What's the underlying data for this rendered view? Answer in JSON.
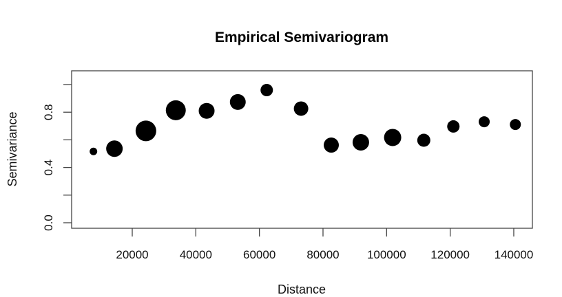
{
  "chart_data": {
    "type": "scatter",
    "title": "Empirical Semivariogram",
    "xlabel": "Distance",
    "ylabel": "Semivariance",
    "xlim": [
      4000,
      146000
    ],
    "ylim": [
      -0.02,
      1.04
    ],
    "x_ticks": [
      20000,
      40000,
      60000,
      80000,
      100000,
      120000,
      140000
    ],
    "x_tick_labels": [
      "20000",
      "40000",
      "60000",
      "80000",
      "100000",
      "120000",
      "140000"
    ],
    "y_ticks": [
      0.0,
      0.2,
      0.4,
      0.6,
      0.8,
      1.0
    ],
    "y_tick_labels": [
      "0.0",
      "",
      "0.4",
      "",
      "0.8",
      ""
    ],
    "grid": false,
    "legend": null,
    "marker": "filled circle, size proportional to number of pairs",
    "point_color": "#000000",
    "points": [
      {
        "x": 7800,
        "y": 0.516,
        "size": 5.5
      },
      {
        "x": 14400,
        "y": 0.536,
        "size": 12
      },
      {
        "x": 24300,
        "y": 0.665,
        "size": 15
      },
      {
        "x": 33700,
        "y": 0.814,
        "size": 14.5
      },
      {
        "x": 43400,
        "y": 0.81,
        "size": 11.5
      },
      {
        "x": 53200,
        "y": 0.874,
        "size": 11.5
      },
      {
        "x": 62300,
        "y": 0.96,
        "size": 9
      },
      {
        "x": 73100,
        "y": 0.826,
        "size": 10.5
      },
      {
        "x": 82600,
        "y": 0.562,
        "size": 11
      },
      {
        "x": 91900,
        "y": 0.582,
        "size": 12
      },
      {
        "x": 101900,
        "y": 0.617,
        "size": 12.5
      },
      {
        "x": 111700,
        "y": 0.597,
        "size": 9.5
      },
      {
        "x": 121000,
        "y": 0.697,
        "size": 9
      },
      {
        "x": 130700,
        "y": 0.731,
        "size": 8
      },
      {
        "x": 140500,
        "y": 0.711,
        "size": 8
      }
    ]
  }
}
